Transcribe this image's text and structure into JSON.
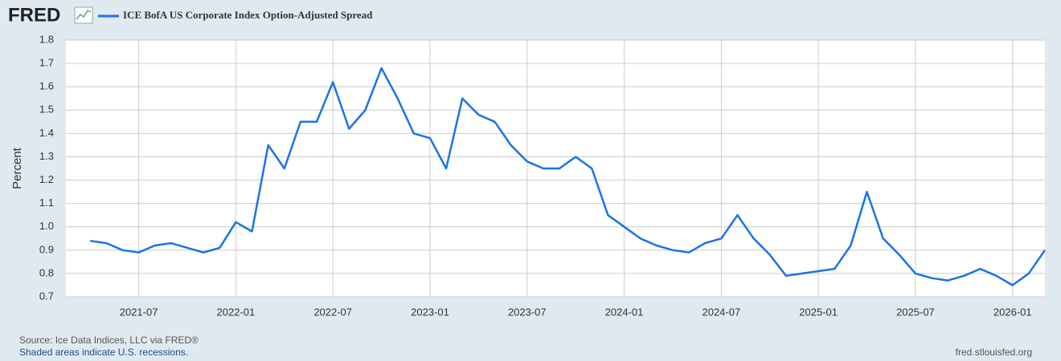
{
  "chart_data": {
    "type": "line",
    "logo": "FRED",
    "title": "ICE BofA US Corporate Index Option-Adjusted Spread",
    "ylabel": "Percent",
    "source": "Source: Ice Data Indices, LLC via FRED®",
    "note": "Shaded areas indicate U.S. recessions.",
    "site": "fred.stlouisfed.org",
    "x": [
      "2021-04",
      "2021-05",
      "2021-06",
      "2021-07",
      "2021-08",
      "2021-09",
      "2021-10",
      "2021-11",
      "2021-12",
      "2022-01",
      "2022-02",
      "2022-03",
      "2022-04",
      "2022-05",
      "2022-06",
      "2022-07",
      "2022-08",
      "2022-09",
      "2022-10",
      "2022-11",
      "2022-12",
      "2023-01",
      "2023-02",
      "2023-03",
      "2023-04",
      "2023-05",
      "2023-06",
      "2023-07",
      "2023-08",
      "2023-09",
      "2023-10",
      "2023-11",
      "2023-12",
      "2024-01",
      "2024-02",
      "2024-03",
      "2024-04",
      "2024-05",
      "2024-06",
      "2024-07",
      "2024-08",
      "2024-09",
      "2024-10",
      "2024-11",
      "2024-12",
      "2025-01",
      "2025-02",
      "2025-03",
      "2025-04",
      "2025-05",
      "2025-06",
      "2025-07",
      "2025-08",
      "2025-09",
      "2025-10",
      "2025-11",
      "2025-12",
      "2026-01",
      "2026-02",
      "2026-03"
    ],
    "series": [
      {
        "name": "ICE BofA US Corporate Index Option-Adjusted Spread",
        "color": "#1a73e8",
        "values": [
          0.94,
          0.93,
          0.9,
          0.89,
          0.92,
          0.93,
          0.91,
          0.89,
          0.91,
          1.02,
          0.98,
          1.35,
          1.25,
          1.45,
          1.45,
          1.62,
          1.42,
          1.5,
          1.68,
          1.55,
          1.4,
          1.38,
          1.25,
          1.55,
          1.48,
          1.45,
          1.35,
          1.28,
          1.25,
          1.25,
          1.3,
          1.25,
          1.05,
          1.0,
          0.95,
          0.92,
          0.9,
          0.89,
          0.93,
          0.95,
          1.05,
          0.95,
          0.88,
          0.79,
          0.8,
          0.81,
          0.82,
          0.92,
          1.15,
          0.95,
          0.88,
          0.8,
          0.78,
          0.77,
          0.79,
          0.82,
          0.79,
          0.75,
          0.8,
          0.9
        ]
      }
    ],
    "xlim": [
      "2021-03",
      "2026-03"
    ],
    "xticks": [
      "2021-07",
      "2022-01",
      "2022-07",
      "2023-01",
      "2023-07",
      "2024-01",
      "2024-07",
      "2025-01",
      "2025-07",
      "2026-01"
    ],
    "ylim": [
      0.7,
      1.8
    ],
    "yticks": [
      0.7,
      0.8,
      0.9,
      {
        "value": 1.0,
        "label": "1.0"
      },
      1.1,
      1.2,
      1.3,
      1.4,
      1.5,
      1.6,
      1.7,
      1.8
    ],
    "grid": true
  }
}
